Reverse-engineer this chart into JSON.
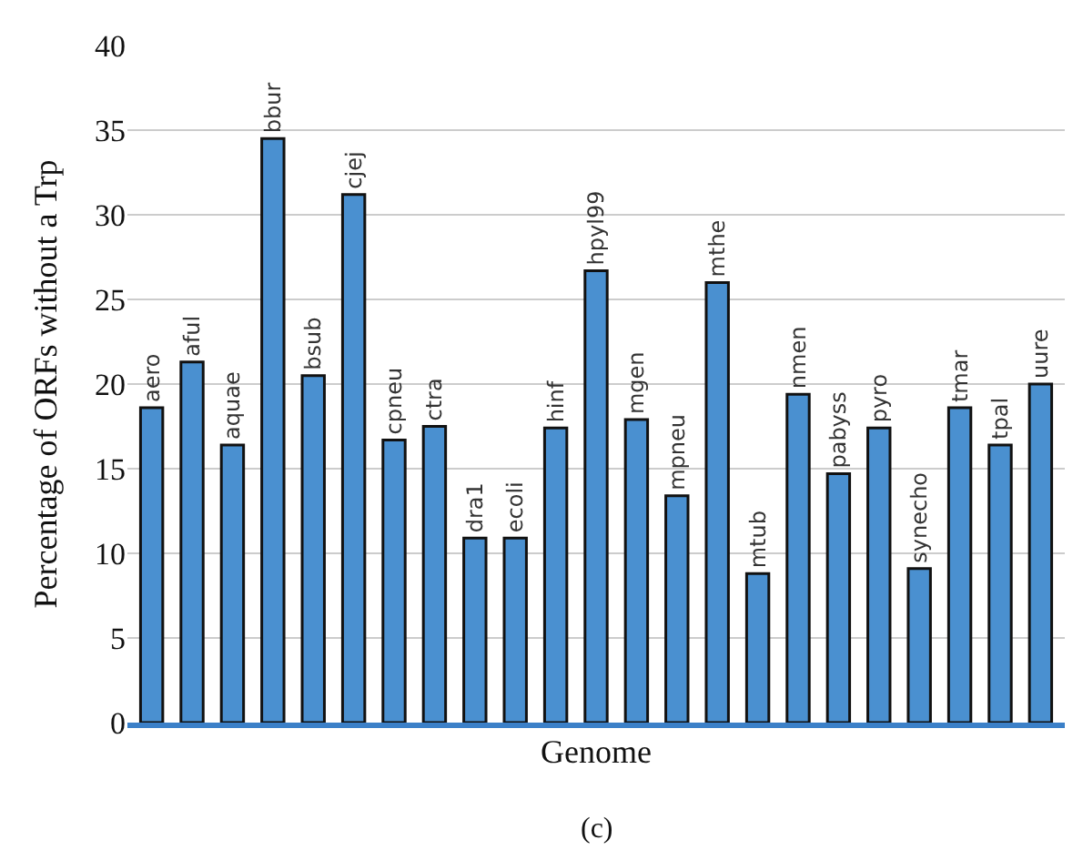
{
  "chart_data": {
    "type": "bar",
    "xlabel": "Genome",
    "ylabel": "Percentage of ORFs without a Trp",
    "categories": [
      "aero",
      "aful",
      "aquae",
      "bbur",
      "bsub",
      "cjej",
      "cpneu",
      "ctra",
      "dra1",
      "ecoli",
      "hinf",
      "hpyl99",
      "mgen",
      "mpneu",
      "mthe",
      "mtub",
      "nmen",
      "pabyss",
      "pyro",
      "synecho",
      "tmar",
      "tpal",
      "uure"
    ],
    "values": [
      18.6,
      21.3,
      16.4,
      34.5,
      20.5,
      31.2,
      16.7,
      17.5,
      10.9,
      10.9,
      17.4,
      26.7,
      17.9,
      13.4,
      26.0,
      8.8,
      19.4,
      14.7,
      17.4,
      9.1,
      18.6,
      16.4,
      20.0
    ],
    "color": "#4a90d0",
    "ylim": [
      0,
      40
    ],
    "yticks": [
      0,
      5,
      10,
      15,
      20,
      25,
      30,
      35,
      40
    ],
    "grid": "y",
    "tick_labels": "y",
    "annotations": [
      "(c)"
    ]
  }
}
